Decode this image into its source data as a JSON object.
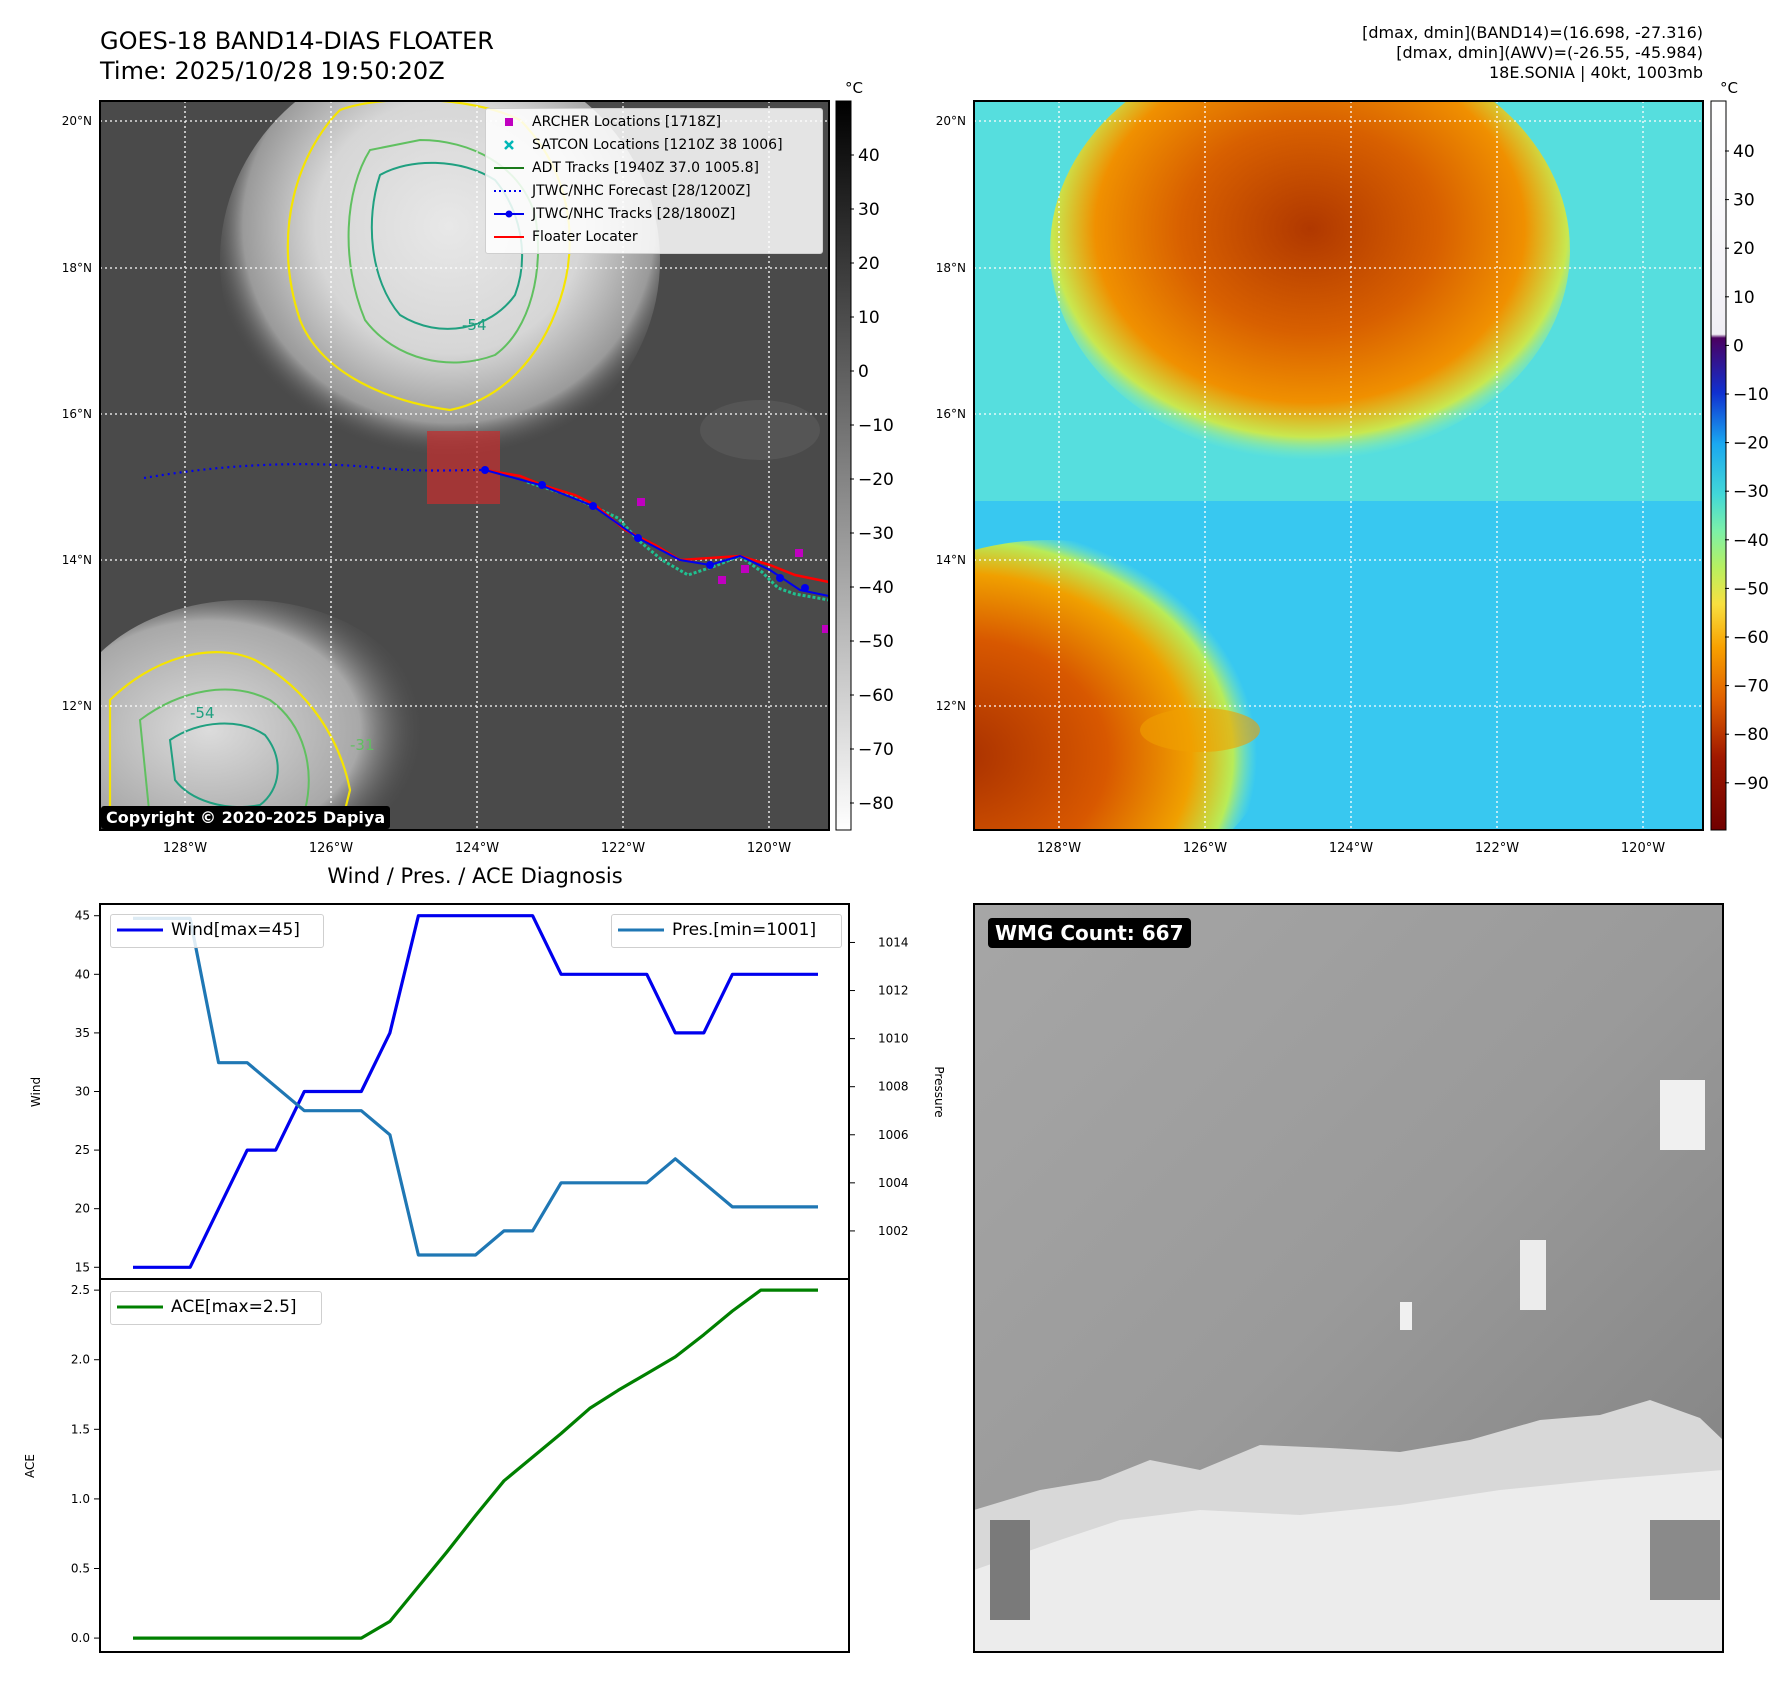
{
  "header": {
    "title_line1": "GOES-18 BAND14-DIAS FLOATER",
    "title_line2": "Time: 2025/10/28 19:50:20Z",
    "info_line1": "[dmax, dmin](BAND14)=(16.698, -27.316)",
    "info_line2": "[dmax, dmin](AWV)=(-26.55, -45.984)",
    "info_line3": "18E.SONIA | 40kt, 1003mb"
  },
  "map_axes": {
    "lat_ticks": [
      "20°N",
      "18°N",
      "16°N",
      "14°N",
      "12°N"
    ],
    "lon_ticks": [
      "128°W",
      "126°W",
      "124°W",
      "122°W",
      "120°W"
    ],
    "contour_labels": [
      "-54",
      "-54",
      "-31"
    ]
  },
  "colorbar_left": {
    "unit": "°C",
    "ticks": [
      "40",
      "30",
      "20",
      "10",
      "0",
      "−10",
      "−20",
      "−30",
      "−40",
      "−50",
      "−60",
      "−70",
      "−80"
    ]
  },
  "colorbar_right": {
    "unit": "°C",
    "ticks": [
      "40",
      "30",
      "20",
      "10",
      "0",
      "−10",
      "−20",
      "−30",
      "−40",
      "−50",
      "−60",
      "−70",
      "−80",
      "−90"
    ]
  },
  "legend_map": {
    "items": [
      {
        "label": "ARCHER Locations [1718Z]",
        "color": "#c000c0"
      },
      {
        "label": "SATCON Locations [1210Z 38 1006]",
        "color": "#00b7b7"
      },
      {
        "label": "ADT Tracks [1940Z 37.0 1005.8]",
        "color": "#1a7a1a"
      },
      {
        "label": "JTWC/NHC Forecast [28/1200Z]",
        "color": "#0000ee"
      },
      {
        "label": "JTWC/NHC Tracks [28/1800Z]",
        "color": "#0000ee"
      },
      {
        "label": "Floater Locater",
        "color": "#ff0000"
      }
    ]
  },
  "copyright": "Copyright © 2020-2025 Dapiya",
  "wmg_label": "WMG Count: 667",
  "chart_data": [
    {
      "type": "line",
      "title": "Wind / Pres. / ACE Diagnosis",
      "ylabel": "Wind",
      "ylabel_right": "Pressure",
      "ylim": [
        14,
        46
      ],
      "ylim_right": [
        1000.0,
        1015.6
      ],
      "yticks": [
        "45",
        "40",
        "35",
        "30",
        "25",
        "20",
        "15"
      ],
      "yticks_right": [
        "1014",
        "1012",
        "1010",
        "1008",
        "1006",
        "1004",
        "1002"
      ],
      "x": [
        0,
        1,
        2,
        3,
        4,
        5,
        6,
        7,
        8,
        9,
        10,
        11,
        12,
        13,
        14,
        15,
        16,
        17,
        18,
        19,
        20,
        21,
        22,
        23,
        24
      ],
      "series": [
        {
          "name": "Wind[max=45]",
          "color": "#0000ee",
          "values": [
            15,
            15,
            15,
            20,
            25,
            25,
            30,
            30,
            30,
            35,
            45,
            45,
            45,
            45,
            45,
            40,
            40,
            40,
            40,
            35,
            35,
            40,
            40,
            40,
            40
          ]
        },
        {
          "name": "Pres.[min=1001]",
          "color": "#1f77b4",
          "axis": "right",
          "values": [
            1015,
            1015,
            1015,
            1009,
            1009,
            1008,
            1007,
            1007,
            1007,
            1006,
            1001,
            1001,
            1001,
            1002,
            1002,
            1004,
            1004,
            1004,
            1004,
            1005,
            1004,
            1003,
            1003,
            1003,
            1003
          ]
        }
      ]
    },
    {
      "type": "line",
      "ylabel": "ACE",
      "ylim": [
        -0.1,
        2.58
      ],
      "yticks": [
        "2.5",
        "2.0",
        "1.5",
        "1.0",
        "0.5",
        "0.0"
      ],
      "x": [
        0,
        1,
        2,
        3,
        4,
        5,
        6,
        7,
        8,
        9,
        10,
        11,
        12,
        13,
        14,
        15,
        16,
        17,
        18,
        19,
        20,
        21,
        22,
        23,
        24
      ],
      "series": [
        {
          "name": "ACE[max=2.5]",
          "color": "#008000",
          "values": [
            0,
            0,
            0,
            0,
            0,
            0,
            0,
            0,
            0,
            0.12,
            0.37,
            0.62,
            0.88,
            1.13,
            1.3,
            1.47,
            1.65,
            1.78,
            1.9,
            2.02,
            2.18,
            2.35,
            2.5,
            2.5,
            2.5
          ]
        }
      ]
    }
  ]
}
